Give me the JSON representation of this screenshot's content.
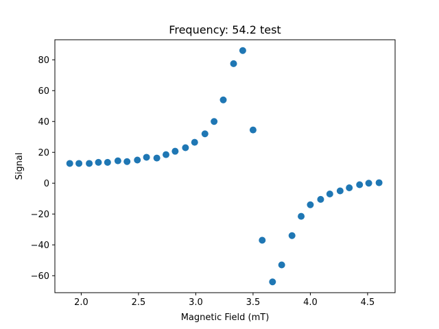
{
  "chart_data": {
    "type": "scatter",
    "title": "Frequency: 54.2 test",
    "xlabel": "Magnetic Field (mT)",
    "ylabel": "Signal",
    "xlim": [
      1.77,
      4.74
    ],
    "ylim": [
      -71,
      93
    ],
    "xticks": [
      2.0,
      2.5,
      3.0,
      3.5,
      4.0,
      4.5
    ],
    "xtick_labels": [
      "2.0",
      "2.5",
      "3.0",
      "3.5",
      "4.0",
      "4.5"
    ],
    "yticks": [
      -60,
      -40,
      -20,
      0,
      20,
      40,
      60,
      80
    ],
    "ytick_labels": [
      "−60",
      "−40",
      "−20",
      "0",
      "20",
      "40",
      "60",
      "80"
    ],
    "grid": false,
    "marker_color": "#1f77b4",
    "series": [
      {
        "x": [
          1.9,
          1.98,
          2.07,
          2.15,
          2.23,
          2.32,
          2.4,
          2.49,
          2.57,
          2.66,
          2.74,
          2.82,
          2.91,
          2.99,
          3.08,
          3.16,
          3.24,
          3.33,
          3.41,
          3.5,
          3.58,
          3.67,
          3.75,
          3.84,
          3.92,
          4.0,
          4.09,
          4.17,
          4.26,
          4.34,
          4.43,
          4.51,
          4.6
        ],
        "y": [
          12.8,
          12.8,
          12.8,
          13.5,
          13.5,
          14.5,
          14.0,
          15.0,
          16.8,
          16.3,
          18.5,
          20.7,
          23.0,
          26.5,
          32.0,
          40.0,
          54.0,
          77.5,
          86.0,
          34.5,
          -37.0,
          -64.0,
          -53.0,
          -34.0,
          -21.5,
          -14.0,
          -10.5,
          -7.0,
          -5.0,
          -3.0,
          -1.0,
          0.0,
          0.3
        ]
      }
    ]
  }
}
